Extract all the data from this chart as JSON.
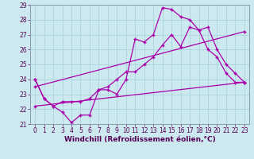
{
  "xlabel": "Windchill (Refroidissement éolien,°C)",
  "xlim": [
    -0.5,
    23.5
  ],
  "ylim": [
    21,
    29
  ],
  "xticks": [
    0,
    1,
    2,
    3,
    4,
    5,
    6,
    7,
    8,
    9,
    10,
    11,
    12,
    13,
    14,
    15,
    16,
    17,
    18,
    19,
    20,
    21,
    22,
    23
  ],
  "yticks": [
    21,
    22,
    23,
    24,
    25,
    26,
    27,
    28,
    29
  ],
  "background_color": "#cce9f0",
  "grid_color": "#aad4dc",
  "line_color": "#aa00aa",
  "line1_x": [
    0,
    1,
    2,
    3,
    4,
    5,
    6,
    7,
    8,
    9,
    10,
    11,
    12,
    13,
    14,
    15,
    16,
    17,
    18,
    19,
    20,
    21,
    22,
    23
  ],
  "line1_y": [
    24.0,
    22.7,
    22.2,
    21.8,
    21.1,
    21.6,
    21.6,
    23.3,
    23.3,
    23.0,
    24.0,
    26.7,
    26.5,
    27.0,
    28.8,
    28.7,
    28.2,
    28.0,
    27.3,
    26.0,
    25.5,
    24.4,
    23.8,
    23.8
  ],
  "line2_x": [
    0,
    1,
    2,
    3,
    4,
    5,
    6,
    7,
    8,
    9,
    10,
    11,
    12,
    13,
    14,
    15,
    16,
    17,
    18,
    19,
    20,
    21,
    22,
    23
  ],
  "line2_y": [
    24.0,
    22.7,
    22.2,
    22.5,
    22.5,
    22.5,
    22.7,
    23.3,
    23.5,
    24.0,
    24.5,
    24.5,
    25.0,
    25.5,
    26.3,
    27.0,
    26.2,
    27.5,
    27.3,
    27.5,
    26.0,
    25.0,
    24.4,
    23.8
  ],
  "line3_x": [
    0,
    23
  ],
  "line3_y": [
    22.2,
    23.8
  ],
  "line4_x": [
    0,
    23
  ],
  "line4_y": [
    23.5,
    27.2
  ],
  "tick_fontsize": 5.5,
  "label_fontsize": 6.5
}
